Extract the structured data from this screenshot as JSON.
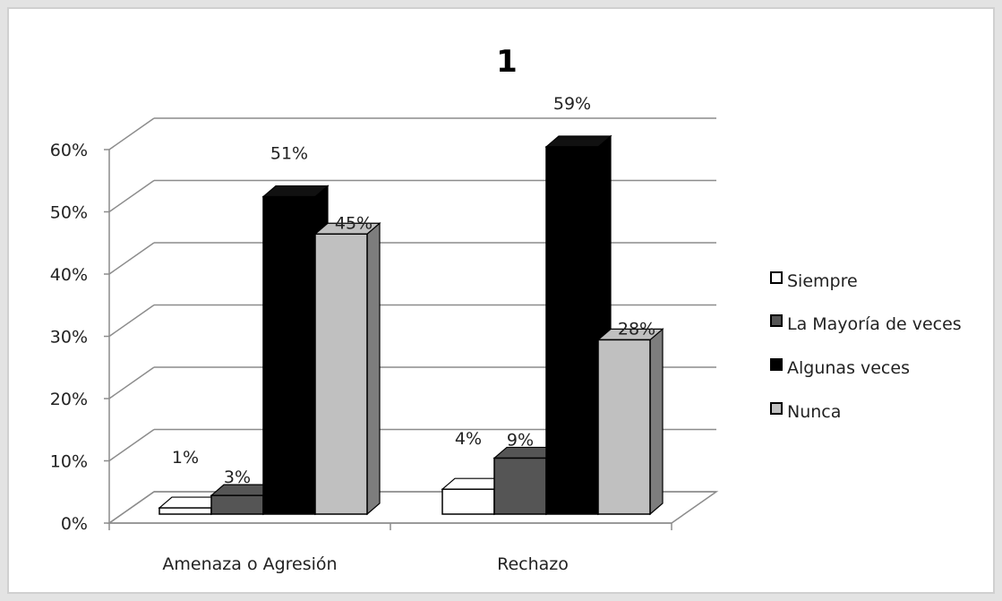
{
  "chart_data": {
    "type": "bar",
    "title": "1",
    "categories": [
      "Amenaza o Agresión",
      "Rechazo"
    ],
    "series": [
      {
        "name": "Siempre",
        "values": [
          1,
          4
        ],
        "labels": [
          "1%",
          "4%"
        ],
        "color": "#ffffff",
        "side_color": "#7a7a7a"
      },
      {
        "name": "La Mayoría de veces",
        "values": [
          3,
          9
        ],
        "labels": [
          "3%",
          "9%"
        ],
        "color": "#555555",
        "side_color": "#3a3a3a"
      },
      {
        "name": "Algunas veces",
        "values": [
          51,
          59
        ],
        "labels": [
          "51%",
          "59%"
        ],
        "color": "#000000",
        "side_color": "#000000"
      },
      {
        "name": "Nunca",
        "values": [
          45,
          28
        ],
        "labels": [
          "45%",
          "28%"
        ],
        "color": "#c0c0c0",
        "side_color": "#7d7d7d"
      }
    ],
    "yticks": [
      "0%",
      "10%",
      "20%",
      "30%",
      "40%",
      "50%",
      "60%"
    ],
    "ylim": [
      0,
      60
    ],
    "grid": true,
    "legend_position": "right",
    "style": "3d-clustered-column"
  }
}
